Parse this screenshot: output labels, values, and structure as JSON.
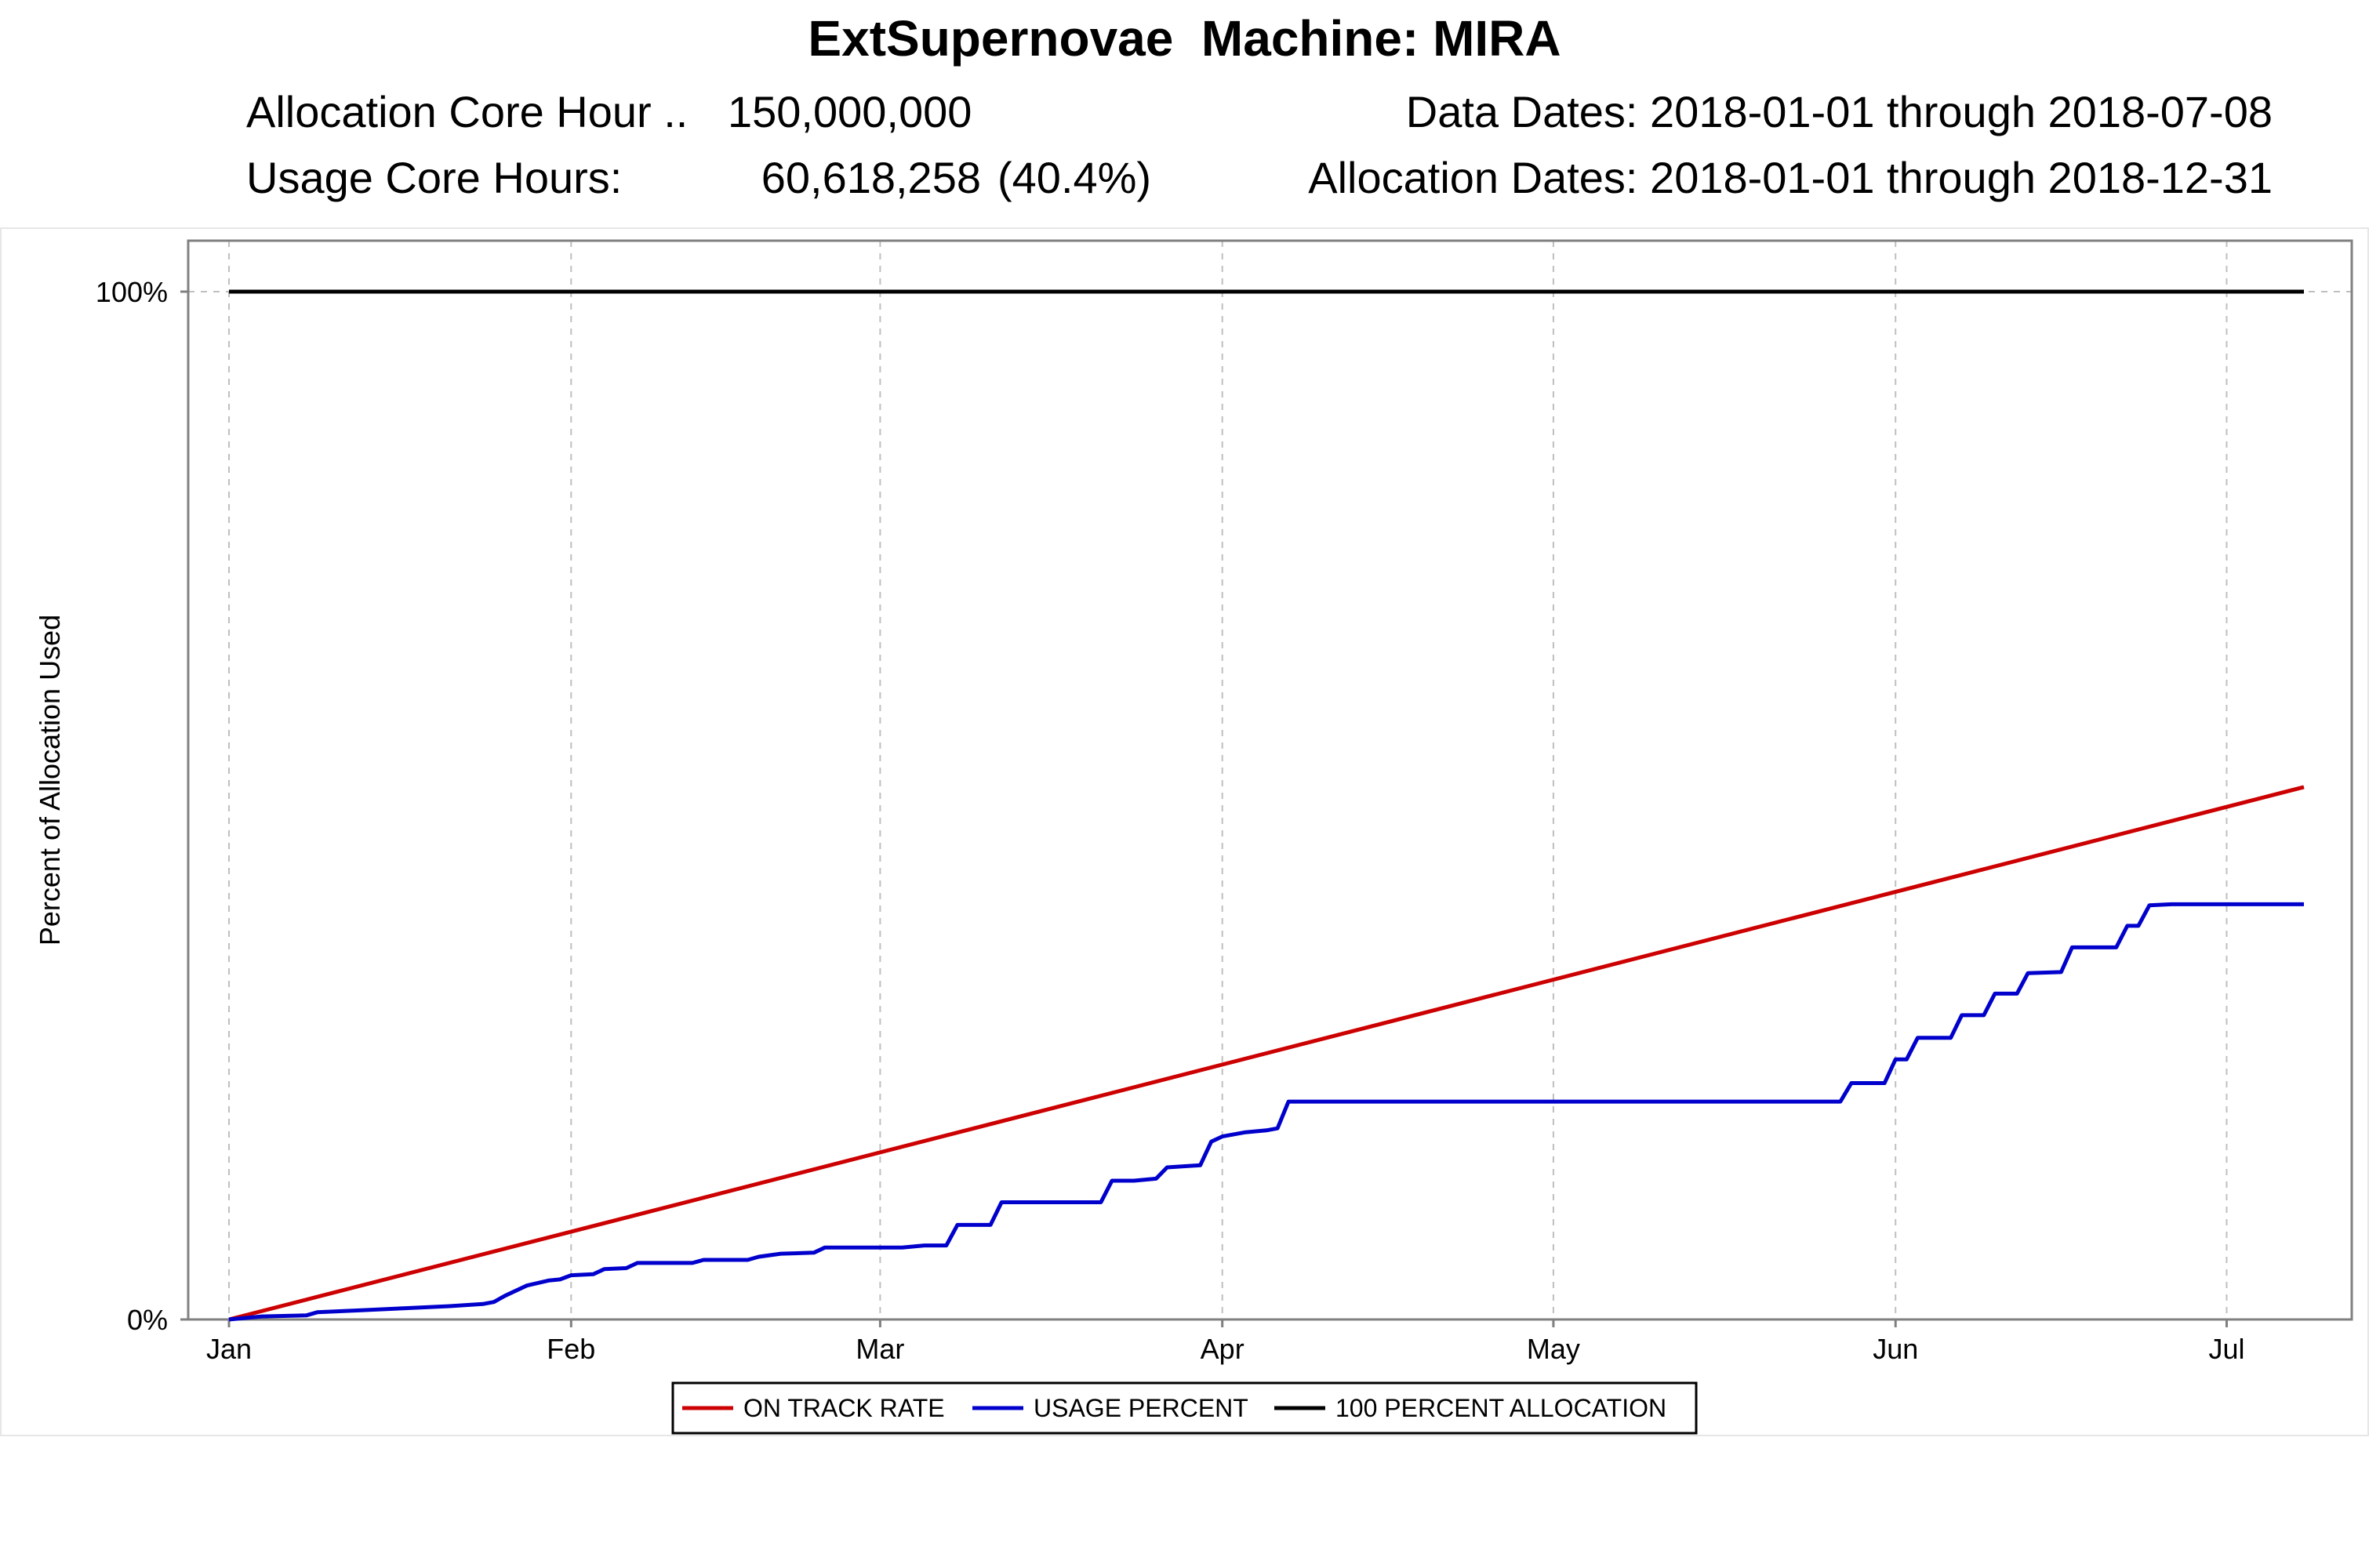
{
  "header": {
    "title": "ExtSupernovae  Machine: MIRA",
    "allocation_label": "Allocation Core Hour ..",
    "allocation_value": "150,000,000",
    "usage_label": "Usage Core Hours:",
    "usage_value": "60,618,258",
    "usage_percent": "(40.4%)",
    "data_dates": "Data Dates: 2018-01-01 through 2018-07-08",
    "allocation_dates": "Allocation Dates: 2018-01-01 through 2018-12-31"
  },
  "colors": {
    "on_track": "#cc0000",
    "usage": "#0000cc",
    "allocation": "#000000",
    "grid": "#bfbfbf",
    "axis": "#808080"
  },
  "chart_data": {
    "type": "line",
    "title": "",
    "xlabel": "",
    "ylabel": "Percent of Allocation Used",
    "ylim": [
      0,
      100
    ],
    "yticks": [
      0,
      100
    ],
    "ytick_labels": [
      "0%",
      "100%"
    ],
    "xlim": [
      "2018-01-01",
      "2018-07-08"
    ],
    "xticks": [
      "2018-01-01",
      "2018-02-01",
      "2018-03-01",
      "2018-04-01",
      "2018-05-01",
      "2018-06-01",
      "2018-07-01"
    ],
    "xtick_labels": [
      "Jan",
      "Feb",
      "Mar",
      "Apr",
      "May",
      "Jun",
      "Jul"
    ],
    "grid": true,
    "legend_position": "bottom-center",
    "series": [
      {
        "name": "ON TRACK RATE",
        "color": "#cc0000",
        "points": [
          [
            "2018-01-01",
            0
          ],
          [
            "2018-07-08",
            51.8
          ]
        ]
      },
      {
        "name": "USAGE PERCENT",
        "color": "#0000cc",
        "points": [
          [
            "2018-01-01",
            0
          ],
          [
            "2018-01-04",
            0.3
          ],
          [
            "2018-01-08",
            0.4
          ],
          [
            "2018-01-09",
            0.7
          ],
          [
            "2018-01-13",
            0.9
          ],
          [
            "2018-01-17",
            1.1
          ],
          [
            "2018-01-21",
            1.3
          ],
          [
            "2018-01-24",
            1.5
          ],
          [
            "2018-01-25",
            1.7
          ],
          [
            "2018-01-26",
            2.3
          ],
          [
            "2018-01-28",
            3.3
          ],
          [
            "2018-01-30",
            3.8
          ],
          [
            "2018-01-31",
            3.9
          ],
          [
            "2018-02-01",
            4.3
          ],
          [
            "2018-02-03",
            4.4
          ],
          [
            "2018-02-04",
            4.9
          ],
          [
            "2018-02-06",
            5.0
          ],
          [
            "2018-02-07",
            5.5
          ],
          [
            "2018-02-12",
            5.5
          ],
          [
            "2018-02-13",
            5.8
          ],
          [
            "2018-02-17",
            5.8
          ],
          [
            "2018-02-18",
            6.1
          ],
          [
            "2018-02-20",
            6.4
          ],
          [
            "2018-02-23",
            6.5
          ],
          [
            "2018-02-24",
            7.0
          ],
          [
            "2018-03-03",
            7.0
          ],
          [
            "2018-03-05",
            7.2
          ],
          [
            "2018-03-07",
            7.2
          ],
          [
            "2018-03-08",
            9.2
          ],
          [
            "2018-03-11",
            9.2
          ],
          [
            "2018-03-12",
            11.4
          ],
          [
            "2018-03-21",
            11.4
          ],
          [
            "2018-03-22",
            13.5
          ],
          [
            "2018-03-24",
            13.5
          ],
          [
            "2018-03-26",
            13.7
          ],
          [
            "2018-03-27",
            14.8
          ],
          [
            "2018-03-30",
            15.0
          ],
          [
            "2018-03-31",
            17.3
          ],
          [
            "2018-04-01",
            17.8
          ],
          [
            "2018-04-03",
            18.2
          ],
          [
            "2018-04-05",
            18.4
          ],
          [
            "2018-04-06",
            18.6
          ],
          [
            "2018-04-07",
            21.2
          ],
          [
            "2018-05-27",
            21.2
          ],
          [
            "2018-05-28",
            23.0
          ],
          [
            "2018-05-31",
            23.0
          ],
          [
            "2018-06-01",
            25.3
          ],
          [
            "2018-06-02",
            25.3
          ],
          [
            "2018-06-03",
            27.4
          ],
          [
            "2018-06-06",
            27.4
          ],
          [
            "2018-06-07",
            29.6
          ],
          [
            "2018-06-09",
            29.6
          ],
          [
            "2018-06-10",
            31.7
          ],
          [
            "2018-06-12",
            31.7
          ],
          [
            "2018-06-13",
            33.7
          ],
          [
            "2018-06-16",
            33.8
          ],
          [
            "2018-06-17",
            36.2
          ],
          [
            "2018-06-21",
            36.2
          ],
          [
            "2018-06-22",
            38.3
          ],
          [
            "2018-06-23",
            38.3
          ],
          [
            "2018-06-24",
            40.3
          ],
          [
            "2018-06-26",
            40.4
          ],
          [
            "2018-07-08",
            40.4
          ]
        ]
      },
      {
        "name": "100 PERCENT ALLOCATION",
        "color": "#000000",
        "points": [
          [
            "2018-01-01",
            100
          ],
          [
            "2018-07-08",
            100
          ]
        ]
      }
    ]
  }
}
